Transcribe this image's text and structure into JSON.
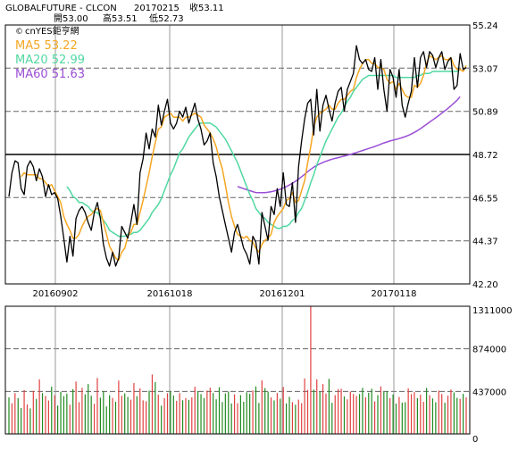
{
  "header": {
    "instrument": "GLOBALFUTURE - CLCON",
    "date": "20170215",
    "close_label": "收53.11",
    "open_label": "開53.00",
    "high_label": "高53.51",
    "low_label": "低52.73"
  },
  "legend": {
    "source": "cnYES鉅亨網",
    "ma5": "MA5 53.22",
    "ma20": "MA20 52.99",
    "ma60": "MA60 51.63"
  },
  "colors": {
    "price": "#000000",
    "ma5": "#f5a623",
    "ma20": "#50d8a0",
    "ma60": "#9a4fd6",
    "volume_up": "#e04040",
    "volume_down": "#1f8a1f",
    "grid": "#666666"
  },
  "chart_data": [
    {
      "type": "line",
      "y_ticks": [
        55.24,
        53.07,
        50.89,
        48.72,
        46.55,
        44.37,
        42.2
      ],
      "ylim": [
        42.2,
        55.24
      ],
      "x_ticks": [
        "20160902",
        "20161018",
        "20161201",
        "20170118"
      ],
      "grid": true,
      "reference_line": 48.72,
      "series": [
        {
          "name": "price",
          "values": [
            46.6,
            47.8,
            48.4,
            48.3,
            47.0,
            46.7,
            48.1,
            48.4,
            48.1,
            47.4,
            48.0,
            47.6,
            46.6,
            47.2,
            46.7,
            46.8,
            46.5,
            45.6,
            44.5,
            43.3,
            44.6,
            43.6,
            45.5,
            45.9,
            46.1,
            45.8,
            45.3,
            44.9,
            45.8,
            46.3,
            45.5,
            44.2,
            43.5,
            43.1,
            43.8,
            43.1,
            43.5,
            45.1,
            44.8,
            44.5,
            45.3,
            46.2,
            45.2,
            47.8,
            48.5,
            49.8,
            49.0,
            50.0,
            49.6,
            51.2,
            50.2,
            50.9,
            51.5,
            50.3,
            50.0,
            50.3,
            50.9,
            50.6,
            51.1,
            50.3,
            50.8,
            51.3,
            50.5,
            50.0,
            49.2,
            49.4,
            49.8,
            48.3,
            47.6,
            46.6,
            45.9,
            45.2,
            44.5,
            43.8,
            44.8,
            45.2,
            44.6,
            44.0,
            43.7,
            43.2,
            44.6,
            44.3,
            43.2,
            45.8,
            45.1,
            44.4,
            46.1,
            45.7,
            47.0,
            46.1,
            47.8,
            46.2,
            46.1,
            47.3,
            45.3,
            48.1,
            49.4,
            50.5,
            51.3,
            51.5,
            49.7,
            52.0,
            49.9,
            51.2,
            51.7,
            51.0,
            50.4,
            51.3,
            51.9,
            52.1,
            50.9,
            52.0,
            52.4,
            52.8,
            54.2,
            53.5,
            53.3,
            53.5,
            53.0,
            52.9,
            53.6,
            52.0,
            53.5,
            52.0,
            50.9,
            53.0,
            52.6,
            51.6,
            53.0,
            51.2,
            50.6,
            51.3,
            51.9,
            53.6,
            52.1,
            53.6,
            53.9,
            53.1,
            53.9,
            53.7,
            53.1,
            53.6,
            53.9,
            53.0,
            53.4,
            53.6,
            52.0,
            52.2,
            53.8,
            53.0,
            53.1
          ]
        },
        {
          "name": "MA5",
          "values": [
            null,
            null,
            null,
            null,
            47.6,
            47.8,
            47.7,
            47.7,
            47.7,
            47.7,
            47.5,
            47.5,
            47.3,
            47.1,
            47.2,
            46.9,
            46.6,
            46.3,
            45.6,
            45.2,
            44.9,
            44.5,
            44.5,
            44.7,
            45.1,
            45.4,
            45.6,
            45.7,
            45.9,
            46.0,
            45.9,
            45.3,
            44.7,
            44.1,
            43.8,
            43.5,
            43.4,
            43.8,
            44.0,
            44.6,
            44.8,
            45.2,
            45.2,
            45.8,
            46.4,
            47.1,
            47.8,
            48.6,
            49.3,
            50.0,
            50.1,
            50.6,
            50.7,
            50.8,
            50.6,
            50.6,
            50.6,
            50.4,
            50.6,
            50.6,
            50.7,
            50.8,
            50.7,
            50.6,
            50.2,
            50.0,
            49.8,
            49.5,
            49.1,
            48.5,
            48.0,
            47.2,
            46.3,
            45.6,
            45.1,
            44.7,
            44.6,
            44.5,
            44.6,
            44.4,
            44.3,
            44.0,
            43.8,
            44.2,
            44.4,
            44.5,
            44.7,
            45.3,
            45.6,
            45.8,
            46.0,
            46.4,
            46.5,
            46.8,
            46.3,
            46.4,
            46.9,
            47.4,
            48.3,
            49.1,
            50.1,
            50.6,
            50.8,
            50.9,
            51.0,
            51.2,
            51.0,
            51.0,
            51.3,
            51.5,
            51.5,
            51.7,
            51.9,
            52.0,
            52.6,
            53.0,
            53.3,
            53.5,
            53.5,
            53.3,
            53.3,
            53.1,
            53.1,
            53.0,
            52.5,
            52.3,
            52.4,
            52.0,
            52.3,
            52.0,
            51.7,
            51.6,
            51.6,
            52.2,
            52.1,
            52.3,
            52.7,
            53.3,
            53.7,
            53.6,
            53.5,
            53.6,
            53.7,
            53.5,
            53.5,
            53.6,
            53.2,
            53.0,
            53.0,
            52.9,
            53.2
          ]
        },
        {
          "name": "MA20",
          "values": [
            null,
            null,
            null,
            null,
            null,
            null,
            null,
            null,
            null,
            null,
            null,
            null,
            null,
            null,
            null,
            null,
            null,
            null,
            null,
            47.1,
            46.9,
            46.6,
            46.5,
            46.3,
            46.3,
            46.2,
            46.1,
            45.9,
            45.8,
            45.8,
            45.6,
            45.4,
            45.2,
            44.9,
            44.8,
            44.7,
            44.6,
            44.6,
            44.6,
            44.7,
            44.7,
            44.8,
            44.8,
            44.9,
            45.1,
            45.3,
            45.5,
            45.8,
            46.0,
            46.2,
            46.5,
            46.9,
            47.3,
            47.7,
            48.0,
            48.4,
            48.8,
            49.0,
            49.3,
            49.6,
            49.8,
            50.0,
            50.2,
            50.3,
            50.3,
            50.3,
            50.3,
            50.2,
            50.1,
            49.9,
            49.7,
            49.5,
            49.2,
            48.9,
            48.6,
            48.3,
            47.9,
            47.5,
            47.1,
            46.7,
            46.4,
            46.0,
            45.8,
            45.6,
            45.5,
            45.3,
            45.2,
            45.1,
            45.0,
            45.0,
            45.1,
            45.1,
            45.2,
            45.4,
            45.5,
            45.8,
            46.0,
            46.4,
            46.8,
            47.3,
            47.7,
            48.2,
            48.6,
            49.0,
            49.4,
            49.7,
            50.0,
            50.3,
            50.6,
            50.8,
            51.1,
            51.4,
            51.6,
            51.9,
            52.1,
            52.3,
            52.5,
            52.6,
            52.7,
            52.7,
            52.7,
            52.7,
            52.7,
            52.7,
            52.7,
            52.7,
            52.7,
            52.6,
            52.6,
            52.6,
            52.6,
            52.6,
            52.6,
            52.6,
            52.7,
            52.7,
            52.8,
            52.8,
            52.8,
            52.9,
            52.9,
            52.9,
            52.9,
            52.9,
            52.9,
            52.9,
            52.9,
            52.9,
            53.0
          ]
        },
        {
          "name": "MA60",
          "values": [
            null,
            null,
            null,
            null,
            null,
            null,
            null,
            null,
            null,
            null,
            null,
            null,
            null,
            null,
            null,
            null,
            null,
            null,
            null,
            null,
            null,
            null,
            null,
            null,
            null,
            null,
            null,
            null,
            null,
            null,
            null,
            null,
            null,
            null,
            null,
            null,
            null,
            null,
            null,
            null,
            null,
            null,
            null,
            null,
            null,
            null,
            null,
            null,
            null,
            null,
            null,
            null,
            null,
            null,
            null,
            null,
            null,
            null,
            null,
            null,
            null,
            null,
            null,
            null,
            null,
            null,
            null,
            null,
            null,
            null,
            null,
            null,
            null,
            null,
            null,
            47.1,
            47.05,
            47.0,
            46.95,
            46.9,
            46.85,
            46.8,
            46.8,
            46.8,
            46.8,
            46.82,
            46.84,
            46.88,
            46.92,
            46.97,
            47.03,
            47.1,
            47.18,
            47.27,
            47.37,
            47.48,
            47.6,
            47.72,
            47.85,
            47.97,
            48.08,
            48.17,
            48.25,
            48.32,
            48.38,
            48.43,
            48.48,
            48.52,
            48.56,
            48.6,
            48.64,
            48.68,
            48.72,
            48.77,
            48.82,
            48.87,
            48.92,
            48.97,
            49.02,
            49.07,
            49.12,
            49.18,
            49.24,
            49.3,
            49.35,
            49.4,
            49.44,
            49.48,
            49.52,
            49.57,
            49.62,
            49.68,
            49.75,
            49.83,
            49.92,
            50.02,
            50.13,
            50.24,
            50.35,
            50.46,
            50.57,
            50.68,
            50.8,
            50.92,
            51.04,
            51.17,
            51.31,
            51.45,
            51.63
          ]
        }
      ]
    },
    {
      "type": "bar",
      "y_ticks": [
        1311000,
        874000,
        437000,
        0
      ],
      "ylim": [
        0,
        1311000
      ],
      "grid": true,
      "values": [
        375000,
        315000,
        420000,
        368000,
        265000,
        450000,
        302000,
        262000,
        442000,
        360000,
        560000,
        420000,
        390000,
        343000,
        485000,
        398000,
        292000,
        433000,
        388000,
        413000,
        300000,
        460000,
        538000,
        326000,
        473000,
        407000,
        512000,
        393000,
        310000,
        575000,
        372000,
        441000,
        283000,
        397000,
        370000,
        330000,
        548000,
        392000,
        417000,
        380000,
        352000,
        522000,
        388000,
        468000,
        345000,
        335000,
        445000,
        610000,
        532000,
        403000,
        291000,
        367000,
        418000,
        442000,
        395000,
        340000,
        420000,
        346000,
        367000,
        350000,
        375000,
        484000,
        440000,
        409000,
        369000,
        445000,
        475000,
        420000,
        356000,
        480000,
        328000,
        415000,
        436000,
        313000,
        406000,
        315000,
        398000,
        330000,
        428000,
        412000,
        447000,
        488000,
        318000,
        550000,
        470000,
        434000,
        375000,
        344000,
        420000,
        362000,
        482000,
        314000,
        381000,
        326000,
        300000,
        352000,
        316000,
        570000,
        452000,
        1310000,
        455000,
        560000,
        436000,
        512000,
        414000,
        565000,
        320000,
        398000,
        460000,
        463000,
        386000,
        355000,
        435000,
        410000,
        390000,
        410000,
        473000,
        377000,
        422000,
        464000,
        334000,
        398000,
        488000,
        432000,
        440000,
        368000,
        406000,
        312000,
        380000,
        322000,
        326000,
        468000,
        409000,
        429000,
        367000,
        402000,
        330000,
        472000,
        398000,
        365000,
        325000,
        445000,
        410000,
        320000,
        393000,
        455000,
        426000,
        371000,
        360000,
        412000,
        375000
      ],
      "up": [
        0,
        1,
        1,
        0,
        0,
        1,
        1,
        0,
        1,
        0,
        1,
        0,
        1,
        1,
        0,
        1,
        0,
        0,
        0,
        0,
        1,
        0,
        1,
        1,
        1,
        0,
        0,
        0,
        1,
        1,
        0,
        0,
        0,
        0,
        1,
        0,
        1,
        1,
        0,
        0,
        1,
        1,
        0,
        1,
        1,
        1,
        0,
        1,
        0,
        1,
        0,
        1,
        1,
        0,
        0,
        1,
        1,
        0,
        1,
        0,
        1,
        1,
        0,
        0,
        0,
        1,
        1,
        0,
        0,
        0,
        0,
        0,
        0,
        0,
        1,
        1,
        0,
        0,
        0,
        0,
        1,
        0,
        0,
        1,
        0,
        0,
        1,
        0,
        1,
        0,
        1,
        0,
        0,
        1,
        0,
        1,
        1,
        1,
        1,
        1,
        0,
        1,
        0,
        1,
        1,
        0,
        0,
        1,
        1,
        1,
        0,
        1,
        1,
        1,
        1,
        0,
        0,
        1,
        0,
        0,
        1,
        0,
        1,
        0,
        0,
        1,
        0,
        0,
        1,
        0,
        0,
        1,
        1,
        1,
        0,
        1,
        1,
        0,
        1,
        0,
        0,
        1,
        1,
        0,
        1,
        1,
        0,
        0,
        1,
        0,
        1
      ]
    }
  ]
}
